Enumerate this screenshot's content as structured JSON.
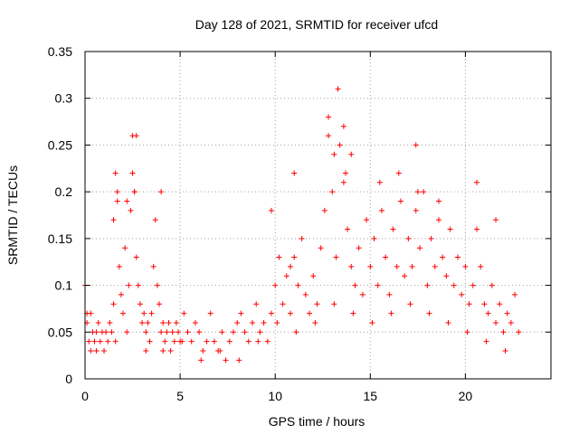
{
  "chart_data": {
    "type": "scatter",
    "title": "Day 128 of 2021, SRMTID for receiver ufcd",
    "xlabel": "GPS time / hours",
    "ylabel": "SRMTID / TECUs",
    "xlim": [
      0,
      24.5
    ],
    "ylim": [
      0,
      0.35
    ],
    "x_ticks": [
      0,
      5,
      10,
      15,
      20
    ],
    "x_tick_labels": [
      "0",
      "5",
      "10",
      "15",
      "20"
    ],
    "y_ticks": [
      0,
      0.05,
      0.1,
      0.15,
      0.2,
      0.25,
      0.3,
      0.35
    ],
    "y_tick_labels": [
      "0",
      "0.05",
      "0.1",
      "0.15",
      "0.2",
      "0.25",
      "0.3",
      "0.35"
    ],
    "grid": true,
    "marker": "+",
    "color": "#ff0000",
    "series": [
      {
        "name": "SRMTID",
        "x": [
          0.0,
          0.1,
          0.2,
          0.3,
          0.4,
          0.5,
          0.6,
          0.7,
          0.8,
          0.9,
          1.0,
          1.1,
          1.2,
          1.3,
          1.4,
          1.5,
          1.5,
          1.6,
          1.7,
          1.8,
          1.9,
          2.0,
          2.1,
          2.2,
          2.3,
          2.4,
          2.5,
          2.5,
          2.6,
          2.7,
          2.8,
          2.9,
          3.0,
          3.1,
          3.2,
          3.3,
          3.4,
          3.5,
          3.6,
          3.7,
          3.8,
          3.9,
          4.0,
          4.1,
          4.2,
          4.3,
          4.4,
          4.5,
          4.6,
          4.7,
          4.8,
          4.9,
          5.0,
          5.2,
          5.4,
          5.6,
          5.8,
          6.0,
          6.2,
          6.4,
          6.6,
          6.8,
          7.0,
          7.2,
          7.4,
          7.6,
          7.8,
          8.0,
          8.2,
          8.4,
          8.6,
          8.8,
          9.0,
          9.2,
          9.4,
          9.6,
          9.8,
          10.0,
          10.2,
          10.4,
          10.6,
          10.8,
          11.0,
          11.2,
          11.4,
          11.6,
          11.8,
          12.0,
          12.2,
          12.4,
          12.6,
          12.8,
          13.0,
          13.2,
          13.4,
          13.6,
          13.8,
          14.0,
          14.2,
          14.4,
          14.6,
          14.8,
          15.0,
          15.2,
          15.4,
          15.6,
          15.8,
          16.0,
          16.2,
          16.4,
          16.6,
          16.8,
          17.0,
          17.2,
          17.4,
          17.6,
          17.8,
          18.0,
          18.2,
          18.4,
          18.6,
          18.8,
          19.0,
          19.2,
          19.4,
          19.6,
          19.8,
          20.0,
          20.2,
          20.4,
          20.6,
          20.8,
          21.0,
          21.2,
          21.4,
          21.6,
          21.8,
          22.0,
          22.2,
          22.4,
          22.6,
          22.8,
          0.1,
          0.3,
          0.6,
          1.6,
          1.7,
          2.5,
          2.6,
          2.7,
          4.0,
          9.8,
          10.8,
          11.0,
          12.8,
          13.1,
          13.3,
          13.6,
          13.7,
          14.0,
          15.5,
          16.5,
          17.4,
          17.5,
          18.6,
          20.6,
          21.6,
          2.2,
          3.2,
          4.1,
          5.1,
          6.1,
          7.1,
          8.1,
          9.1,
          10.1,
          11.1,
          12.1,
          13.1,
          14.1,
          15.1,
          16.1,
          17.1,
          18.1,
          19.1,
          20.1,
          21.1,
          22.1
        ],
        "y": [
          0.1,
          0.07,
          0.04,
          0.03,
          0.05,
          0.04,
          0.03,
          0.06,
          0.04,
          0.05,
          0.03,
          0.05,
          0.04,
          0.06,
          0.05,
          0.08,
          0.17,
          0.22,
          0.2,
          0.12,
          0.09,
          0.07,
          0.14,
          0.19,
          0.1,
          0.18,
          0.26,
          0.22,
          0.2,
          0.13,
          0.1,
          0.08,
          0.06,
          0.07,
          0.05,
          0.06,
          0.04,
          0.07,
          0.12,
          0.17,
          0.1,
          0.08,
          0.05,
          0.06,
          0.04,
          0.05,
          0.06,
          0.03,
          0.05,
          0.04,
          0.06,
          0.05,
          0.04,
          0.07,
          0.05,
          0.04,
          0.06,
          0.05,
          0.03,
          0.04,
          0.07,
          0.04,
          0.03,
          0.05,
          0.02,
          0.04,
          0.05,
          0.06,
          0.07,
          0.05,
          0.04,
          0.06,
          0.08,
          0.05,
          0.06,
          0.04,
          0.07,
          0.1,
          0.13,
          0.08,
          0.11,
          0.07,
          0.13,
          0.1,
          0.15,
          0.09,
          0.07,
          0.11,
          0.08,
          0.14,
          0.18,
          0.26,
          0.2,
          0.13,
          0.25,
          0.21,
          0.16,
          0.12,
          0.1,
          0.14,
          0.09,
          0.17,
          0.12,
          0.15,
          0.1,
          0.18,
          0.13,
          0.09,
          0.16,
          0.12,
          0.19,
          0.11,
          0.15,
          0.12,
          0.18,
          0.14,
          0.2,
          0.1,
          0.15,
          0.12,
          0.17,
          0.13,
          0.11,
          0.16,
          0.1,
          0.13,
          0.09,
          0.12,
          0.08,
          0.1,
          0.16,
          0.12,
          0.08,
          0.07,
          0.1,
          0.06,
          0.08,
          0.05,
          0.07,
          0.06,
          0.09,
          0.05,
          0.06,
          0.07,
          0.05,
          0.04,
          0.19,
          0.22,
          0.2,
          0.26,
          0.2,
          0.18,
          0.12,
          0.22,
          0.28,
          0.24,
          0.31,
          0.27,
          0.22,
          0.24,
          0.21,
          0.22,
          0.25,
          0.2,
          0.19,
          0.21,
          0.17,
          0.05,
          0.03,
          0.03,
          0.04,
          0.02,
          0.03,
          0.02,
          0.04,
          0.06,
          0.05,
          0.06,
          0.08,
          0.07,
          0.06,
          0.07,
          0.08,
          0.07,
          0.06,
          0.05,
          0.04,
          0.03
        ]
      }
    ]
  }
}
